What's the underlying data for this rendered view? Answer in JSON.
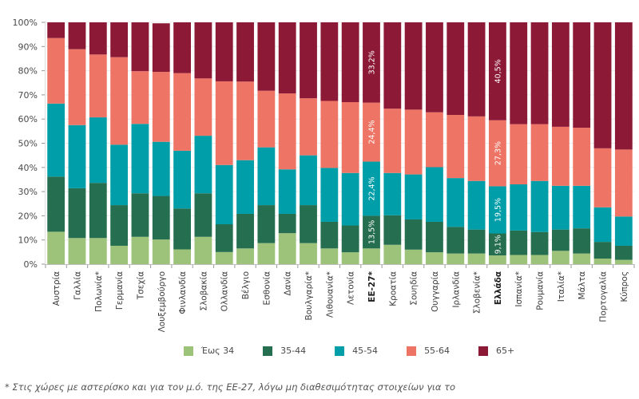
{
  "chart_data": {
    "type": "bar",
    "stacked": true,
    "title": "",
    "xlabel": "",
    "ylabel": "",
    "ylim": [
      0,
      100
    ],
    "yticks": [
      "0%",
      "10%",
      "20%",
      "30%",
      "40%",
      "50%",
      "60%",
      "70%",
      "80%",
      "90%",
      "100%"
    ],
    "grid": true,
    "legend_position": "bottom",
    "categories": [
      "Αυστρία",
      "Γαλλία",
      "Πολωνία*",
      "Γερμανία",
      "Τσεχία",
      "Λουξεμβούργο",
      "Φινλανδία",
      "Σλοβακία",
      "Ολλανδία",
      "Βέλγιο",
      "Εσθονία",
      "Δανία",
      "Βουλγαρία*",
      "Λιθουανία*",
      "Λετονία",
      "ΕΕ-27*",
      "Κροατία",
      "Σουηδία",
      "Ουγγαρία",
      "Ιρλανδία",
      "Σλοβενία*",
      "Ελλάδα",
      "Ισπανία*",
      "Ρουμανία",
      "Ιταλία*",
      "Μάλτα",
      "Πορτογαλία",
      "Κύπρος"
    ],
    "bold_categories": [
      "ΕΕ-27*",
      "Ελλάδα"
    ],
    "series": [
      {
        "name": "Έως 34",
        "color": "#9dc27a",
        "values": [
          13.4,
          10.8,
          10.8,
          7.6,
          11.3,
          10.2,
          6.1,
          11.3,
          5.0,
          6.5,
          8.7,
          12.8,
          8.7,
          6.5,
          4.9,
          6.5,
          8.0,
          6.0,
          4.9,
          4.4,
          4.4,
          3.6,
          3.8,
          3.8,
          5.5,
          4.4,
          2.3,
          1.8
        ]
      },
      {
        "name": "35-44",
        "color": "#256f50",
        "values": [
          22.8,
          20.6,
          22.8,
          16.8,
          18.0,
          18.0,
          16.9,
          18.0,
          11.5,
          14.3,
          15.7,
          8.0,
          15.7,
          11.0,
          11.1,
          13.5,
          12.2,
          12.5,
          12.6,
          11.0,
          9.9,
          9.1,
          10.1,
          9.5,
          8.8,
          10.4,
          6.9,
          5.8
        ]
      },
      {
        "name": "45-54",
        "color": "#009ea8",
        "values": [
          30.2,
          26.1,
          27.1,
          25.0,
          28.7,
          22.4,
          23.9,
          23.8,
          24.5,
          22.2,
          23.9,
          18.4,
          20.6,
          22.3,
          21.7,
          22.4,
          17.5,
          18.6,
          22.6,
          20.2,
          20.1,
          19.5,
          19.1,
          21.1,
          18.1,
          17.6,
          14.3,
          12.1
        ]
      },
      {
        "name": "55-64",
        "color": "#ee7565",
        "values": [
          27.1,
          31.4,
          26.0,
          36.2,
          21.8,
          28.9,
          32.1,
          23.7,
          34.6,
          32.5,
          23.4,
          31.4,
          23.6,
          27.7,
          29.3,
          24.4,
          26.6,
          26.8,
          22.7,
          26.1,
          26.7,
          27.3,
          24.9,
          23.5,
          24.4,
          24.0,
          24.4,
          27.7
        ]
      },
      {
        "name": "65+",
        "color": "#8c1a37",
        "values": [
          6.5,
          11.1,
          13.3,
          14.4,
          20.2,
          20.1,
          21.0,
          23.2,
          24.4,
          24.5,
          28.3,
          29.4,
          31.4,
          32.5,
          33.0,
          33.2,
          35.7,
          36.1,
          37.2,
          38.3,
          38.9,
          40.5,
          42.1,
          42.1,
          43.2,
          43.6,
          52.1,
          52.6
        ]
      }
    ],
    "annotations": [
      {
        "category": "ΕΕ-27*",
        "labels": [
          "",
          "13,5%",
          "22,4%",
          "24,4%",
          "33,2%"
        ]
      },
      {
        "category": "Ελλάδα",
        "labels": [
          "",
          "9,1%",
          "19,5%",
          "27,3%",
          "40,5%"
        ]
      }
    ]
  },
  "legend": [
    {
      "label": "Έως 34",
      "color": "#9dc27a"
    },
    {
      "label": "35-44",
      "color": "#256f50"
    },
    {
      "label": "45-54",
      "color": "#009ea8"
    },
    {
      "label": "55-64",
      "color": "#ee7565"
    },
    {
      "label": "65+",
      "color": "#8c1a37"
    }
  ],
  "footnote": "* Στις χώρες με αστερίσκο και για τον μ.ό. της ΕΕ-27, λόγω μη διαθεσιμότητας στοιχείων για το"
}
